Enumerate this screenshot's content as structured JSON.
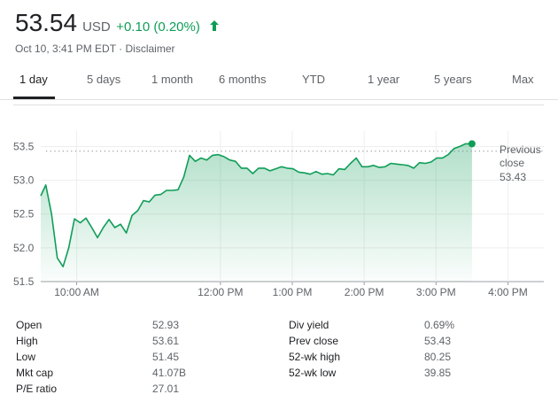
{
  "quote": {
    "price": "53.54",
    "currency": "USD",
    "change": "+0.10 (0.20%)",
    "change_color": "#0f9d58",
    "arrow_icon": "arrow-up-icon",
    "subtitle": "Oct 10, 3:41 PM EDT · Disclaimer"
  },
  "tabs": [
    {
      "label": "1 day",
      "active": true
    },
    {
      "label": "5 days",
      "active": false
    },
    {
      "label": "1 month",
      "active": false
    },
    {
      "label": "6 months",
      "active": false
    },
    {
      "label": "YTD",
      "active": false
    },
    {
      "label": "1 year",
      "active": false
    },
    {
      "label": "5 years",
      "active": false
    },
    {
      "label": "Max",
      "active": false
    }
  ],
  "chart_data": {
    "type": "area",
    "series_color": "#0f9d58",
    "ylim": [
      51.5,
      53.65
    ],
    "y_ticks": [
      "51.5",
      "52.0",
      "52.5",
      "53.0",
      "53.5"
    ],
    "x_ticks": [
      "10:00 AM",
      "12:00 PM",
      "1:00 PM",
      "2:00 PM",
      "3:00 PM",
      "4:00 PM"
    ],
    "x_tick_hours": [
      10,
      12,
      13,
      14,
      15,
      16
    ],
    "previous_close": 53.43,
    "prev_close_label_line1": "Previous",
    "prev_close_label_line2": "close",
    "prev_close_value": "53.43",
    "points": [
      [
        9.5,
        52.77
      ],
      [
        9.57,
        52.93
      ],
      [
        9.65,
        52.5
      ],
      [
        9.73,
        51.85
      ],
      [
        9.81,
        51.72
      ],
      [
        9.89,
        52.0
      ],
      [
        9.97,
        52.43
      ],
      [
        10.05,
        52.37
      ],
      [
        10.13,
        52.44
      ],
      [
        10.21,
        52.3
      ],
      [
        10.29,
        52.15
      ],
      [
        10.37,
        52.3
      ],
      [
        10.45,
        52.42
      ],
      [
        10.53,
        52.3
      ],
      [
        10.61,
        52.35
      ],
      [
        10.69,
        52.22
      ],
      [
        10.77,
        52.48
      ],
      [
        10.85,
        52.55
      ],
      [
        10.93,
        52.7
      ],
      [
        11.01,
        52.68
      ],
      [
        11.09,
        52.78
      ],
      [
        11.17,
        52.79
      ],
      [
        11.25,
        52.85
      ],
      [
        11.33,
        52.85
      ],
      [
        11.41,
        52.86
      ],
      [
        11.49,
        53.05
      ],
      [
        11.57,
        53.37
      ],
      [
        11.65,
        53.28
      ],
      [
        11.73,
        53.33
      ],
      [
        11.81,
        53.3
      ],
      [
        11.89,
        53.37
      ],
      [
        11.97,
        53.38
      ],
      [
        12.05,
        53.35
      ],
      [
        12.13,
        53.3
      ],
      [
        12.21,
        53.28
      ],
      [
        12.29,
        53.18
      ],
      [
        12.37,
        53.18
      ],
      [
        12.45,
        53.1
      ],
      [
        12.53,
        53.18
      ],
      [
        12.61,
        53.18
      ],
      [
        12.69,
        53.14
      ],
      [
        12.77,
        53.17
      ],
      [
        12.85,
        53.2
      ],
      [
        12.93,
        53.18
      ],
      [
        13.01,
        53.17
      ],
      [
        13.09,
        53.12
      ],
      [
        13.17,
        53.11
      ],
      [
        13.25,
        53.09
      ],
      [
        13.33,
        53.13
      ],
      [
        13.41,
        53.09
      ],
      [
        13.49,
        53.1
      ],
      [
        13.57,
        53.08
      ],
      [
        13.65,
        53.17
      ],
      [
        13.73,
        53.16
      ],
      [
        13.81,
        53.25
      ],
      [
        13.89,
        53.33
      ],
      [
        13.97,
        53.2
      ],
      [
        14.05,
        53.2
      ],
      [
        14.13,
        53.22
      ],
      [
        14.21,
        53.19
      ],
      [
        14.29,
        53.2
      ],
      [
        14.37,
        53.25
      ],
      [
        14.45,
        53.24
      ],
      [
        14.53,
        53.23
      ],
      [
        14.61,
        53.22
      ],
      [
        14.69,
        53.18
      ],
      [
        14.77,
        53.26
      ],
      [
        14.85,
        53.25
      ],
      [
        14.93,
        53.27
      ],
      [
        15.01,
        53.33
      ],
      [
        15.09,
        53.33
      ],
      [
        15.17,
        53.38
      ],
      [
        15.25,
        53.47
      ],
      [
        15.33,
        53.5
      ],
      [
        15.41,
        53.54
      ],
      [
        15.5,
        53.54
      ]
    ],
    "x_start_hour": 9.5,
    "x_end_hour": 16.5,
    "grid": true
  },
  "stats": {
    "left": [
      {
        "label": "Open",
        "value": "52.93"
      },
      {
        "label": "High",
        "value": "53.61"
      },
      {
        "label": "Low",
        "value": "51.45"
      },
      {
        "label": "Mkt cap",
        "value": "41.07B"
      },
      {
        "label": "P/E ratio",
        "value": "27.01"
      }
    ],
    "right": [
      {
        "label": "Div yield",
        "value": "0.69%"
      },
      {
        "label": "Prev close",
        "value": "53.43"
      },
      {
        "label": "52-wk high",
        "value": "80.25"
      },
      {
        "label": "52-wk low",
        "value": "39.85"
      }
    ]
  }
}
